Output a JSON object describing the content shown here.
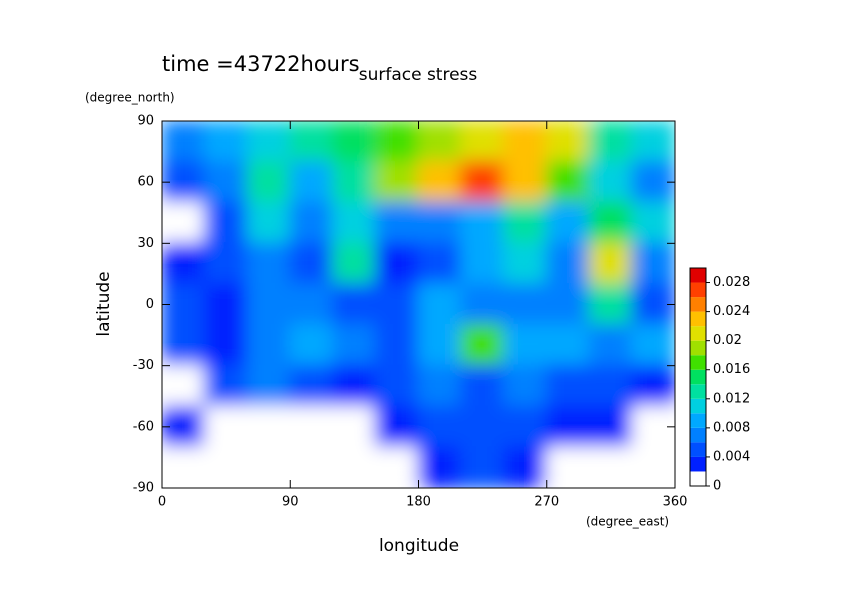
{
  "chart_data": {
    "type": "contour",
    "title": "surface stress",
    "subtitle": "time =43722hours",
    "x_label": "longitude",
    "y_label": "latitude",
    "x_unit": "(degree_east)",
    "y_unit": "(degree_north)",
    "xlim": [
      0,
      360
    ],
    "ylim": [
      -90,
      90
    ],
    "xticks": [
      0,
      90,
      180,
      270,
      360
    ],
    "yticks": [
      90,
      60,
      30,
      0,
      -30,
      -60,
      -90
    ],
    "x": [
      15,
      45,
      75,
      105,
      135,
      165,
      195,
      225,
      255,
      285,
      315,
      345
    ],
    "y": [
      80,
      60,
      40,
      20,
      0,
      -20,
      -40,
      -60,
      -80
    ],
    "z": [
      [
        0.006,
        0.008,
        0.01,
        0.012,
        0.014,
        0.016,
        0.018,
        0.02,
        0.022,
        0.02,
        0.012,
        0.01
      ],
      [
        0.004,
        0.006,
        0.012,
        0.008,
        0.012,
        0.018,
        0.022,
        0.026,
        0.022,
        0.016,
        0.01,
        0.006
      ],
      [
        0,
        0.004,
        0.01,
        0.006,
        0.01,
        0.006,
        0.006,
        0.008,
        0.012,
        0.008,
        0.014,
        0.01
      ],
      [
        0.002,
        0.004,
        0.006,
        0.004,
        0.012,
        0.002,
        0.004,
        0.008,
        0.01,
        0.006,
        0.02,
        0.006
      ],
      [
        0.004,
        0.002,
        0.006,
        0.006,
        0.004,
        0.004,
        0.008,
        0.006,
        0.006,
        0.006,
        0.012,
        0.004
      ],
      [
        0.004,
        0.002,
        0.006,
        0.008,
        0.006,
        0.004,
        0.008,
        0.016,
        0.008,
        0.008,
        0.006,
        0.008
      ],
      [
        0,
        0.004,
        0.006,
        0.004,
        0.002,
        0.004,
        0.006,
        0.004,
        0.006,
        0.004,
        0.004,
        0.002
      ],
      [
        0.002,
        0,
        0,
        0,
        0,
        0.002,
        0.004,
        0.004,
        0.004,
        0.002,
        0.002,
        0
      ],
      [
        0,
        0,
        0,
        0,
        0,
        0,
        0.002,
        0.004,
        0.002,
        0,
        0,
        0
      ]
    ],
    "colorbar": {
      "lim": [
        0,
        0.03
      ],
      "step": 0.002,
      "ticks": [
        0,
        0.004,
        0.008,
        0.012,
        0.016,
        0.02,
        0.024,
        0.028
      ],
      "colors": [
        "#ffffff",
        "#0020ff",
        "#0050ff",
        "#0080ff",
        "#00a8ff",
        "#00d0e0",
        "#00e0a0",
        "#00e060",
        "#40e000",
        "#a0e000",
        "#e0e000",
        "#ffc000",
        "#ff8000",
        "#ff4000",
        "#e00000"
      ]
    }
  }
}
